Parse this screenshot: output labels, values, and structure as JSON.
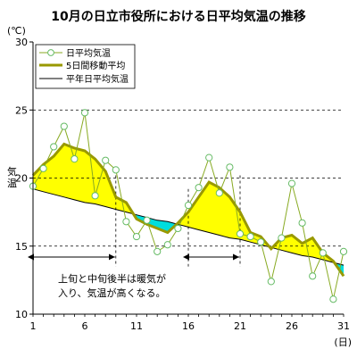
{
  "title": "10月の日立市役所における日平均気温の推移",
  "chart_data": {
    "type": "line",
    "title": "10月の日立市役所における日平均気温の推移",
    "xlabel": "(日)",
    "ylabel": "気温",
    "yunit": "(℃)",
    "xlim": [
      1,
      31
    ],
    "ylim": [
      10,
      30
    ],
    "xticks": [
      1,
      6,
      11,
      16,
      21,
      26,
      31
    ],
    "yticks": [
      10,
      15,
      20,
      25,
      30
    ],
    "grid": "dashed horizontal at 15, 20, 25",
    "legend_position": "top-left",
    "x": [
      1,
      2,
      3,
      4,
      5,
      6,
      7,
      8,
      9,
      10,
      11,
      12,
      13,
      14,
      15,
      16,
      17,
      18,
      19,
      20,
      21,
      22,
      23,
      24,
      25,
      26,
      27,
      28,
      29,
      30,
      31
    ],
    "series": [
      {
        "name": "日平均気温",
        "color": "#88aa22",
        "marker": "circle",
        "values": [
          19.4,
          20.7,
          22.3,
          23.8,
          21.4,
          24.8,
          18.7,
          21.3,
          20.6,
          16.8,
          15.7,
          16.9,
          14.6,
          15.1,
          16.3,
          18.0,
          19.3,
          21.5,
          18.9,
          20.8,
          15.9,
          15.7,
          15.3,
          12.4,
          15.6,
          19.6,
          16.7,
          12.8,
          14.5,
          11.1,
          14.6
        ]
      },
      {
        "name": "5日間移動平均",
        "color": "#999900",
        "values": [
          20.2,
          21.0,
          21.6,
          22.5,
          22.2,
          22.0,
          21.4,
          20.5,
          18.6,
          18.2,
          17.0,
          16.6,
          16.3,
          16.0,
          16.7,
          17.5,
          18.6,
          19.7,
          19.3,
          18.6,
          17.5,
          16.0,
          15.7,
          14.8,
          15.6,
          15.8,
          15.2,
          15.6,
          14.5,
          13.9,
          12.8
        ]
      },
      {
        "name": "平年日平均気温",
        "color": "#000000",
        "values": [
          19.2,
          19.0,
          18.8,
          18.6,
          18.4,
          18.2,
          18.1,
          17.9,
          17.7,
          17.5,
          17.3,
          17.1,
          16.9,
          16.8,
          16.6,
          16.4,
          16.2,
          16.0,
          15.8,
          15.6,
          15.5,
          15.3,
          15.1,
          14.9,
          14.7,
          14.5,
          14.3,
          14.2,
          14.0,
          13.8,
          13.6
        ]
      }
    ],
    "fill_above_color": "#ffff00",
    "fill_below_color": "#00dddd",
    "annotation": {
      "text_line1": "上旬と中旬後半は暖気が",
      "text_line2": "入り、気温が高くなる。",
      "spans": [
        [
          1,
          9
        ],
        [
          16,
          21
        ]
      ]
    }
  }
}
